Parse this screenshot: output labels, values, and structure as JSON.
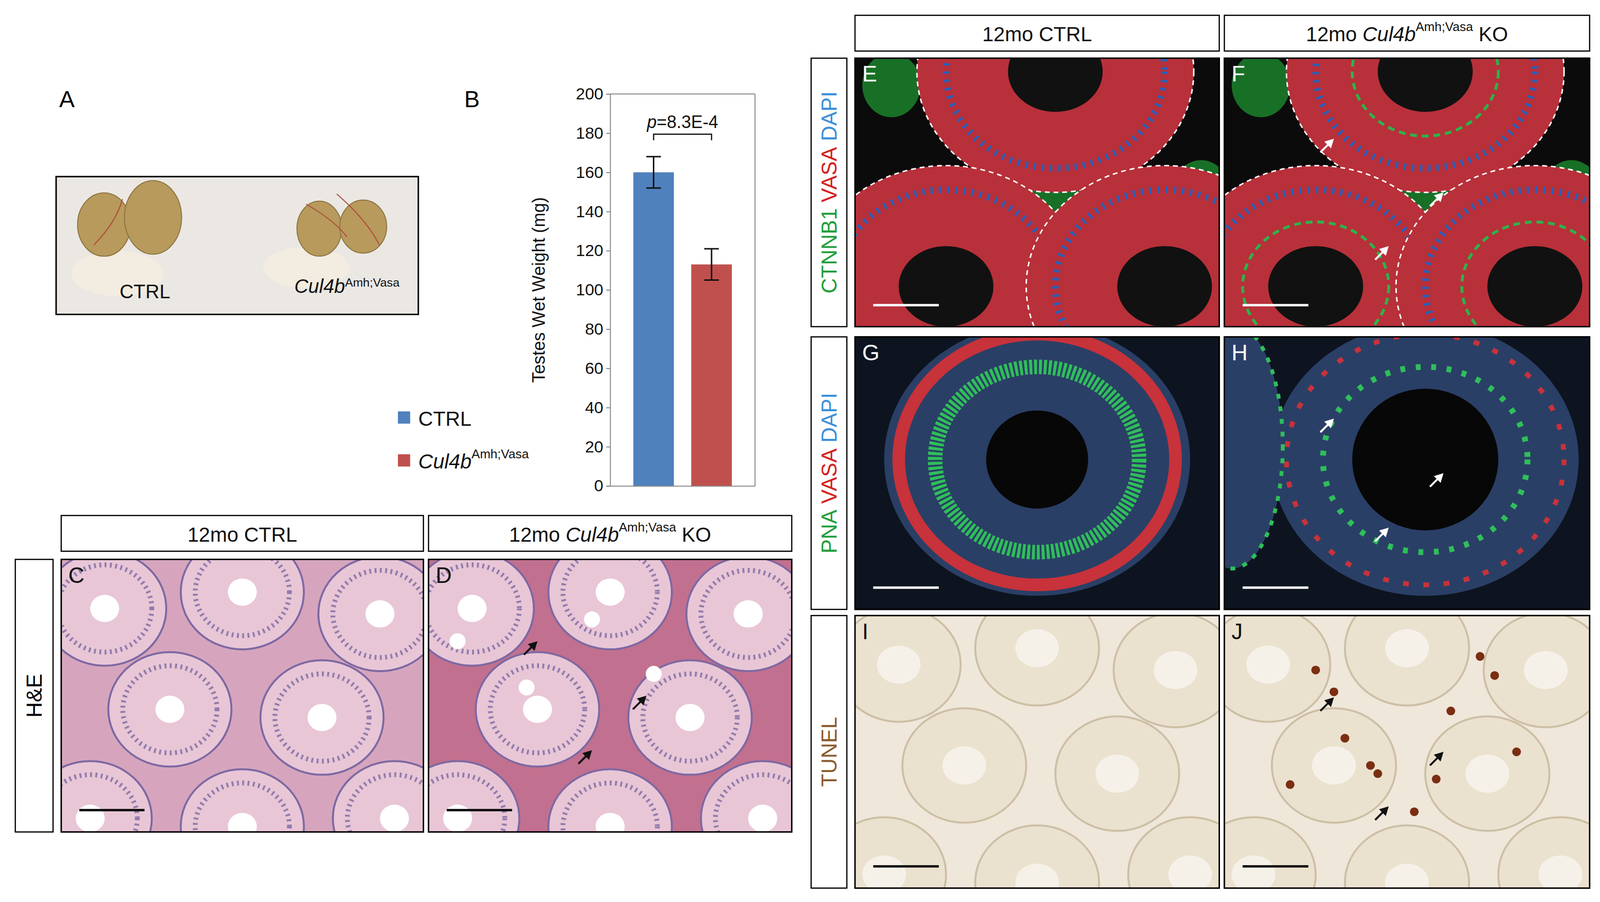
{
  "chart_data": {
    "type": "bar",
    "categories": [
      null
    ],
    "series": [
      {
        "name": "CTRL",
        "color": "#4f81bd",
        "values": [
          160
        ],
        "errors": [
          8
        ]
      },
      {
        "name": "Cul4bAmh;Vasa",
        "color": "#c0504d",
        "values": [
          113
        ],
        "errors": [
          8
        ]
      }
    ],
    "ylabel": "Testes Wet Weight (mg)",
    "ylim": [
      0,
      200
    ],
    "yticks": [
      0,
      20,
      40,
      60,
      80,
      100,
      120,
      140,
      160,
      180,
      200
    ],
    "annotation": "p=8.3E-4",
    "legend": "left",
    "grid": false
  },
  "figure": {
    "photo": {
      "letter": "A",
      "labels": [
        "CTRL",
        "Cul4bAmh;Vasa"
      ]
    },
    "chart_letter": "B",
    "left_headers": [
      "12mo CTRL",
      "12mo Cul4bAmh;Vasa KO"
    ],
    "right_headers": [
      "12mo CTRL",
      "12mo Cul4bAmh;Vasa KO"
    ],
    "left_rows": [
      {
        "stains": [
          {
            "text": "H&E",
            "color": "#000000"
          }
        ],
        "letters": [
          "C",
          "D"
        ]
      }
    ],
    "right_rows": [
      {
        "stains": [
          {
            "text": "CTNNB1",
            "color": "#1f9e3a"
          },
          {
            "text": "VASA",
            "color": "#d42020"
          },
          {
            "text": "DAPI",
            "color": "#3a8fd8"
          }
        ],
        "letters": [
          "E",
          "F"
        ]
      },
      {
        "stains": [
          {
            "text": "PNA",
            "color": "#1f9e3a"
          },
          {
            "text": "VASA",
            "color": "#d42020"
          },
          {
            "text": "DAPI",
            "color": "#3a8fd8"
          }
        ],
        "letters": [
          "G",
          "H"
        ]
      },
      {
        "stains": [
          {
            "text": "TUNEL",
            "color": "#8b5a2b"
          }
        ],
        "letters": [
          "I",
          "J"
        ]
      }
    ]
  }
}
